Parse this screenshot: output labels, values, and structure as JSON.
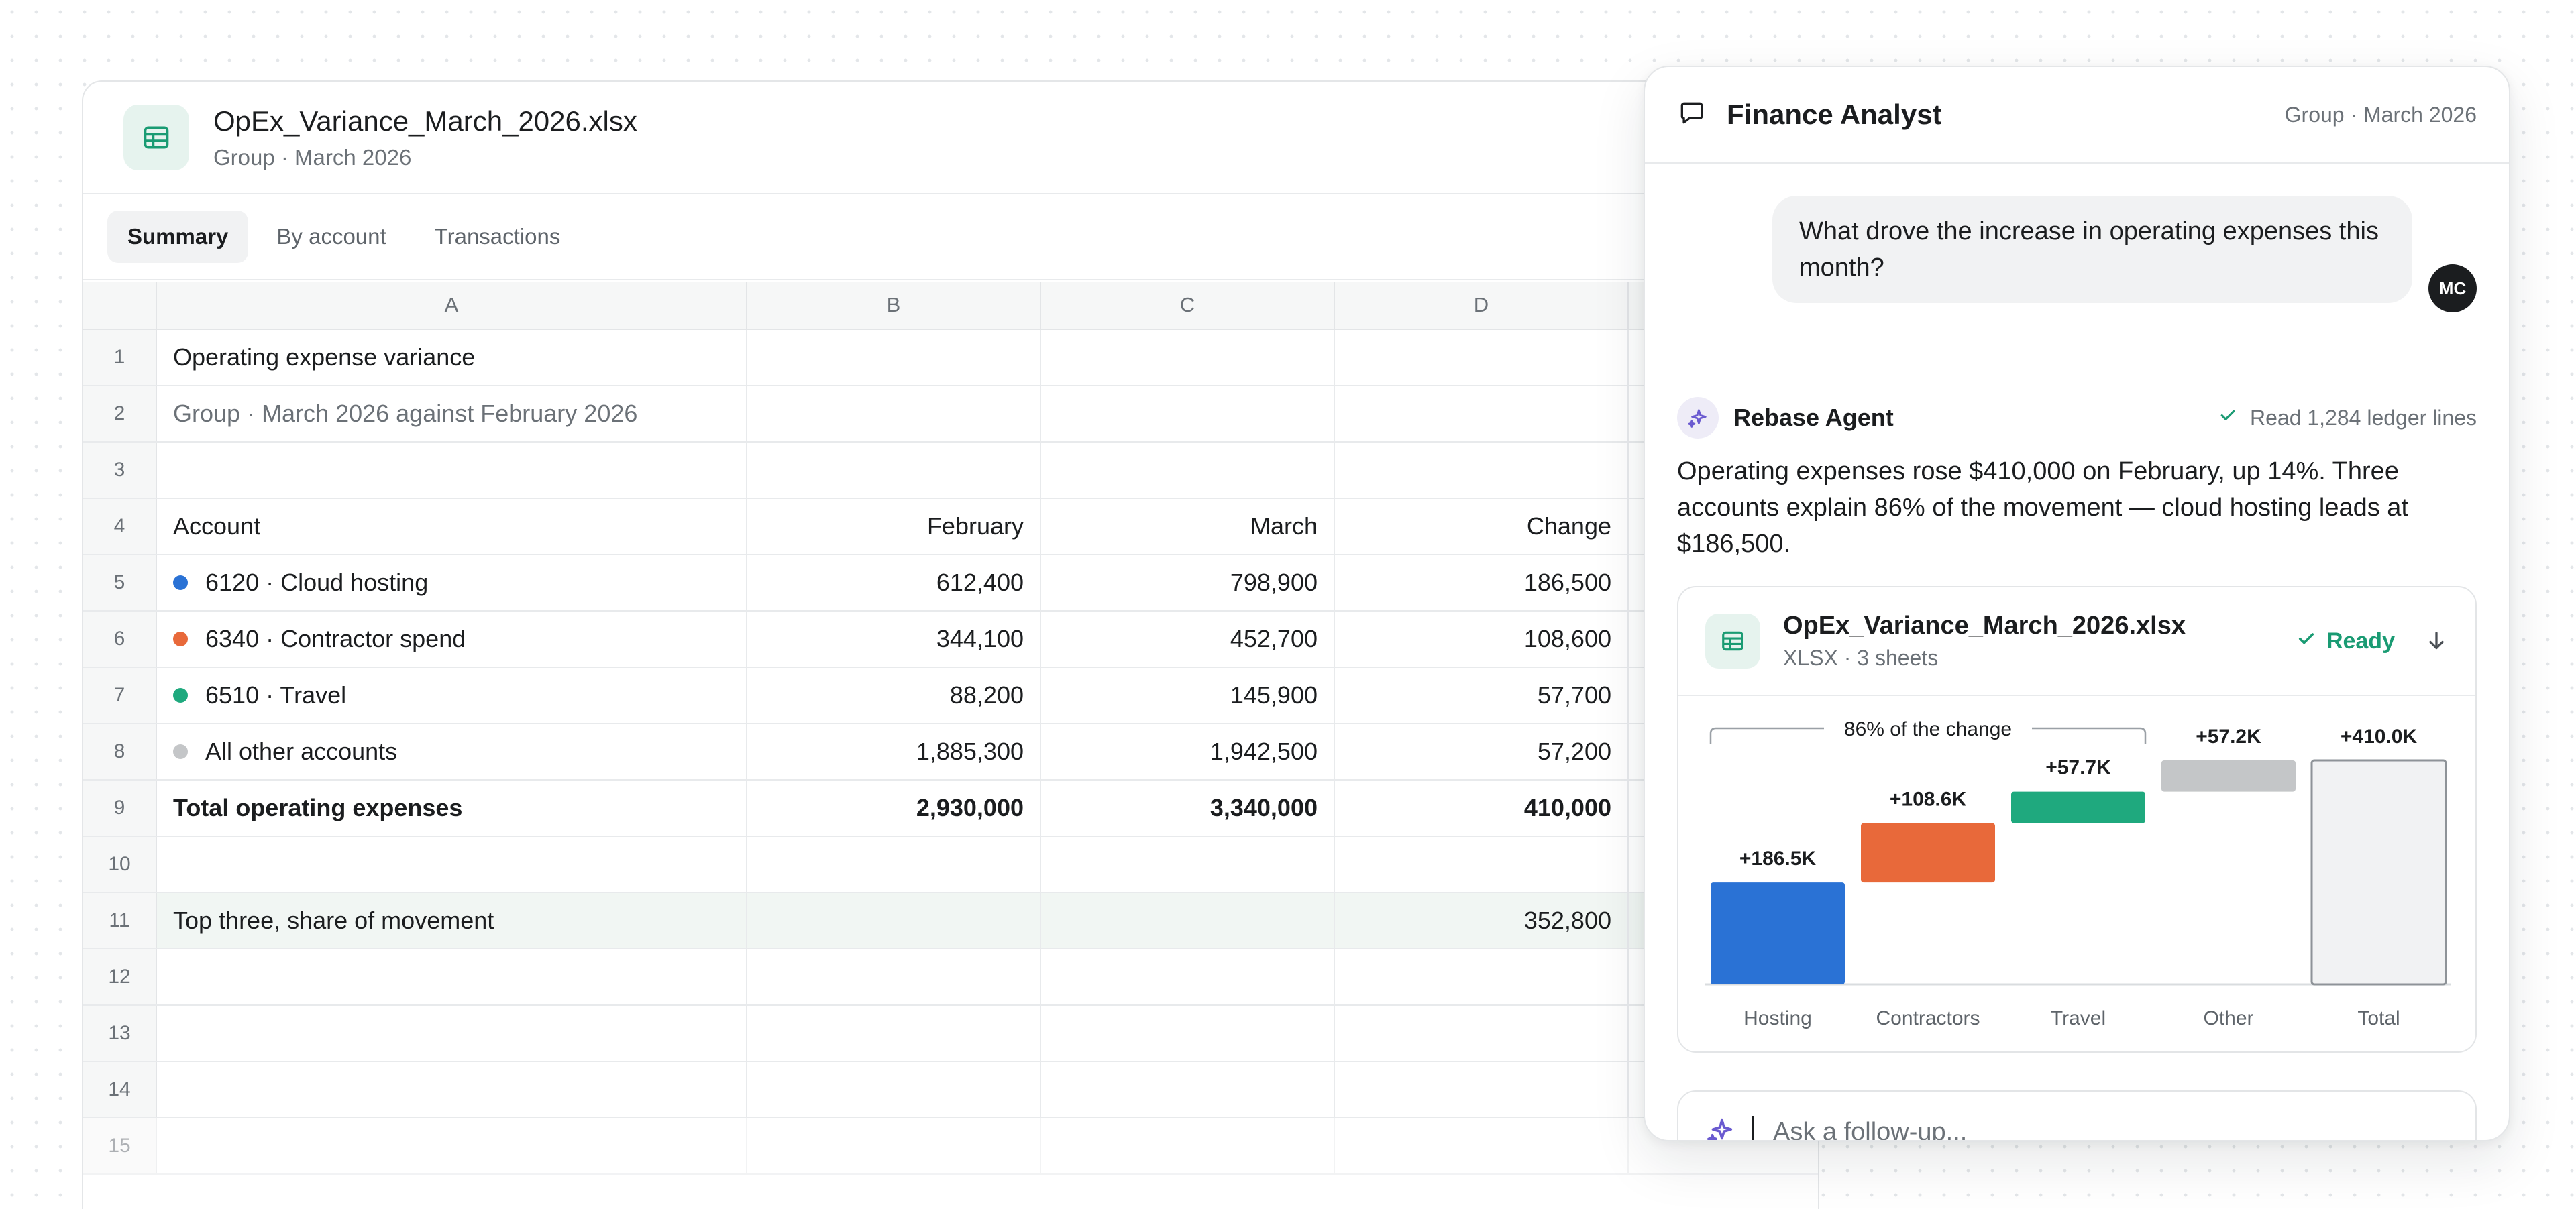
{
  "sheet": {
    "file_name": "OpEx_Variance_March_2026.xlsx",
    "file_subtitle": "Group · March 2026",
    "icon": "spreadsheet-icon",
    "tabs": [
      "Summary",
      "By account",
      "Transactions"
    ],
    "active_tab": "Summary",
    "columns": [
      "A",
      "B",
      "C",
      "D"
    ],
    "rows": {
      "r1": {
        "n": "1",
        "a": "Operating expense variance"
      },
      "r2": {
        "n": "2",
        "a": "Group · March 2026 against February 2026"
      },
      "r3": {
        "n": "3"
      },
      "r4": {
        "n": "4",
        "a": "Account",
        "b": "February",
        "c": "March",
        "d": "Change"
      },
      "r5": {
        "n": "5",
        "a": "6120 · Cloud hosting",
        "b": "612,400",
        "c": "798,900",
        "d": "186,500",
        "dot": "#2a72d5"
      },
      "r6": {
        "n": "6",
        "a": "6340 · Contractor spend",
        "b": "344,100",
        "c": "452,700",
        "d": "108,600",
        "dot": "#e8693a"
      },
      "r7": {
        "n": "7",
        "a": "6510 · Travel",
        "b": "88,200",
        "c": "145,900",
        "d": "57,700",
        "dot": "#1fa97e"
      },
      "r8": {
        "n": "8",
        "a": "All other accounts",
        "b": "1,885,300",
        "c": "1,942,500",
        "d": "57,200",
        "dot": "#c4c6c8"
      },
      "r9": {
        "n": "9",
        "a": "Total operating expenses",
        "b": "2,930,000",
        "c": "3,340,000",
        "d": "410,000"
      },
      "r10": {
        "n": "10"
      },
      "r11": {
        "n": "11",
        "a": "Top three, share of movement",
        "d": "352,800"
      },
      "r12": {
        "n": "12"
      },
      "r13": {
        "n": "13"
      },
      "r14": {
        "n": "14"
      },
      "r15": {
        "n": "15"
      }
    }
  },
  "assistant": {
    "title": "Finance Analyst",
    "context": "Group · March 2026",
    "user_message": "What drove the increase in operating expenses this month?",
    "user_initials": "MC",
    "agent_name": "Rebase Agent",
    "agent_status": "Read 1,284 ledger lines",
    "answer": "Operating expenses rose $410,000 on February, up 14%. Three accounts explain 86% of the movement — cloud hosting leads at $186,500.",
    "file": {
      "name": "OpEx_Variance_March_2026.xlsx",
      "meta": "XLSX · 3 sheets",
      "status": "Ready"
    },
    "composer_placeholder": "Ask a follow-up..."
  },
  "colors": {
    "accent_green": "#1a9b73",
    "agent_purple": "#6a5ad0",
    "hosting": "#2a72d5",
    "contractors": "#e8693a",
    "travel": "#1fa97e",
    "other": "#c4c6c8"
  },
  "chart_data": {
    "type": "bar",
    "subtype": "waterfall",
    "categories": [
      "Hosting",
      "Contractors",
      "Travel",
      "Other",
      "Total"
    ],
    "values": [
      186.5,
      108.6,
      57.7,
      57.2,
      410.0
    ],
    "labels": [
      "+186.5K",
      "+108.6K",
      "+57.7K",
      "+57.2K",
      "+410.0K"
    ],
    "colors": [
      "#2a72d5",
      "#e8693a",
      "#1fa97e",
      "#c4c6c8",
      "#f1f2f3"
    ],
    "bracket_label": "86% of the change",
    "bracket_span": [
      "Hosting",
      "Travel"
    ],
    "ylim": [
      0,
      410
    ],
    "grid": false,
    "legend": "none"
  }
}
